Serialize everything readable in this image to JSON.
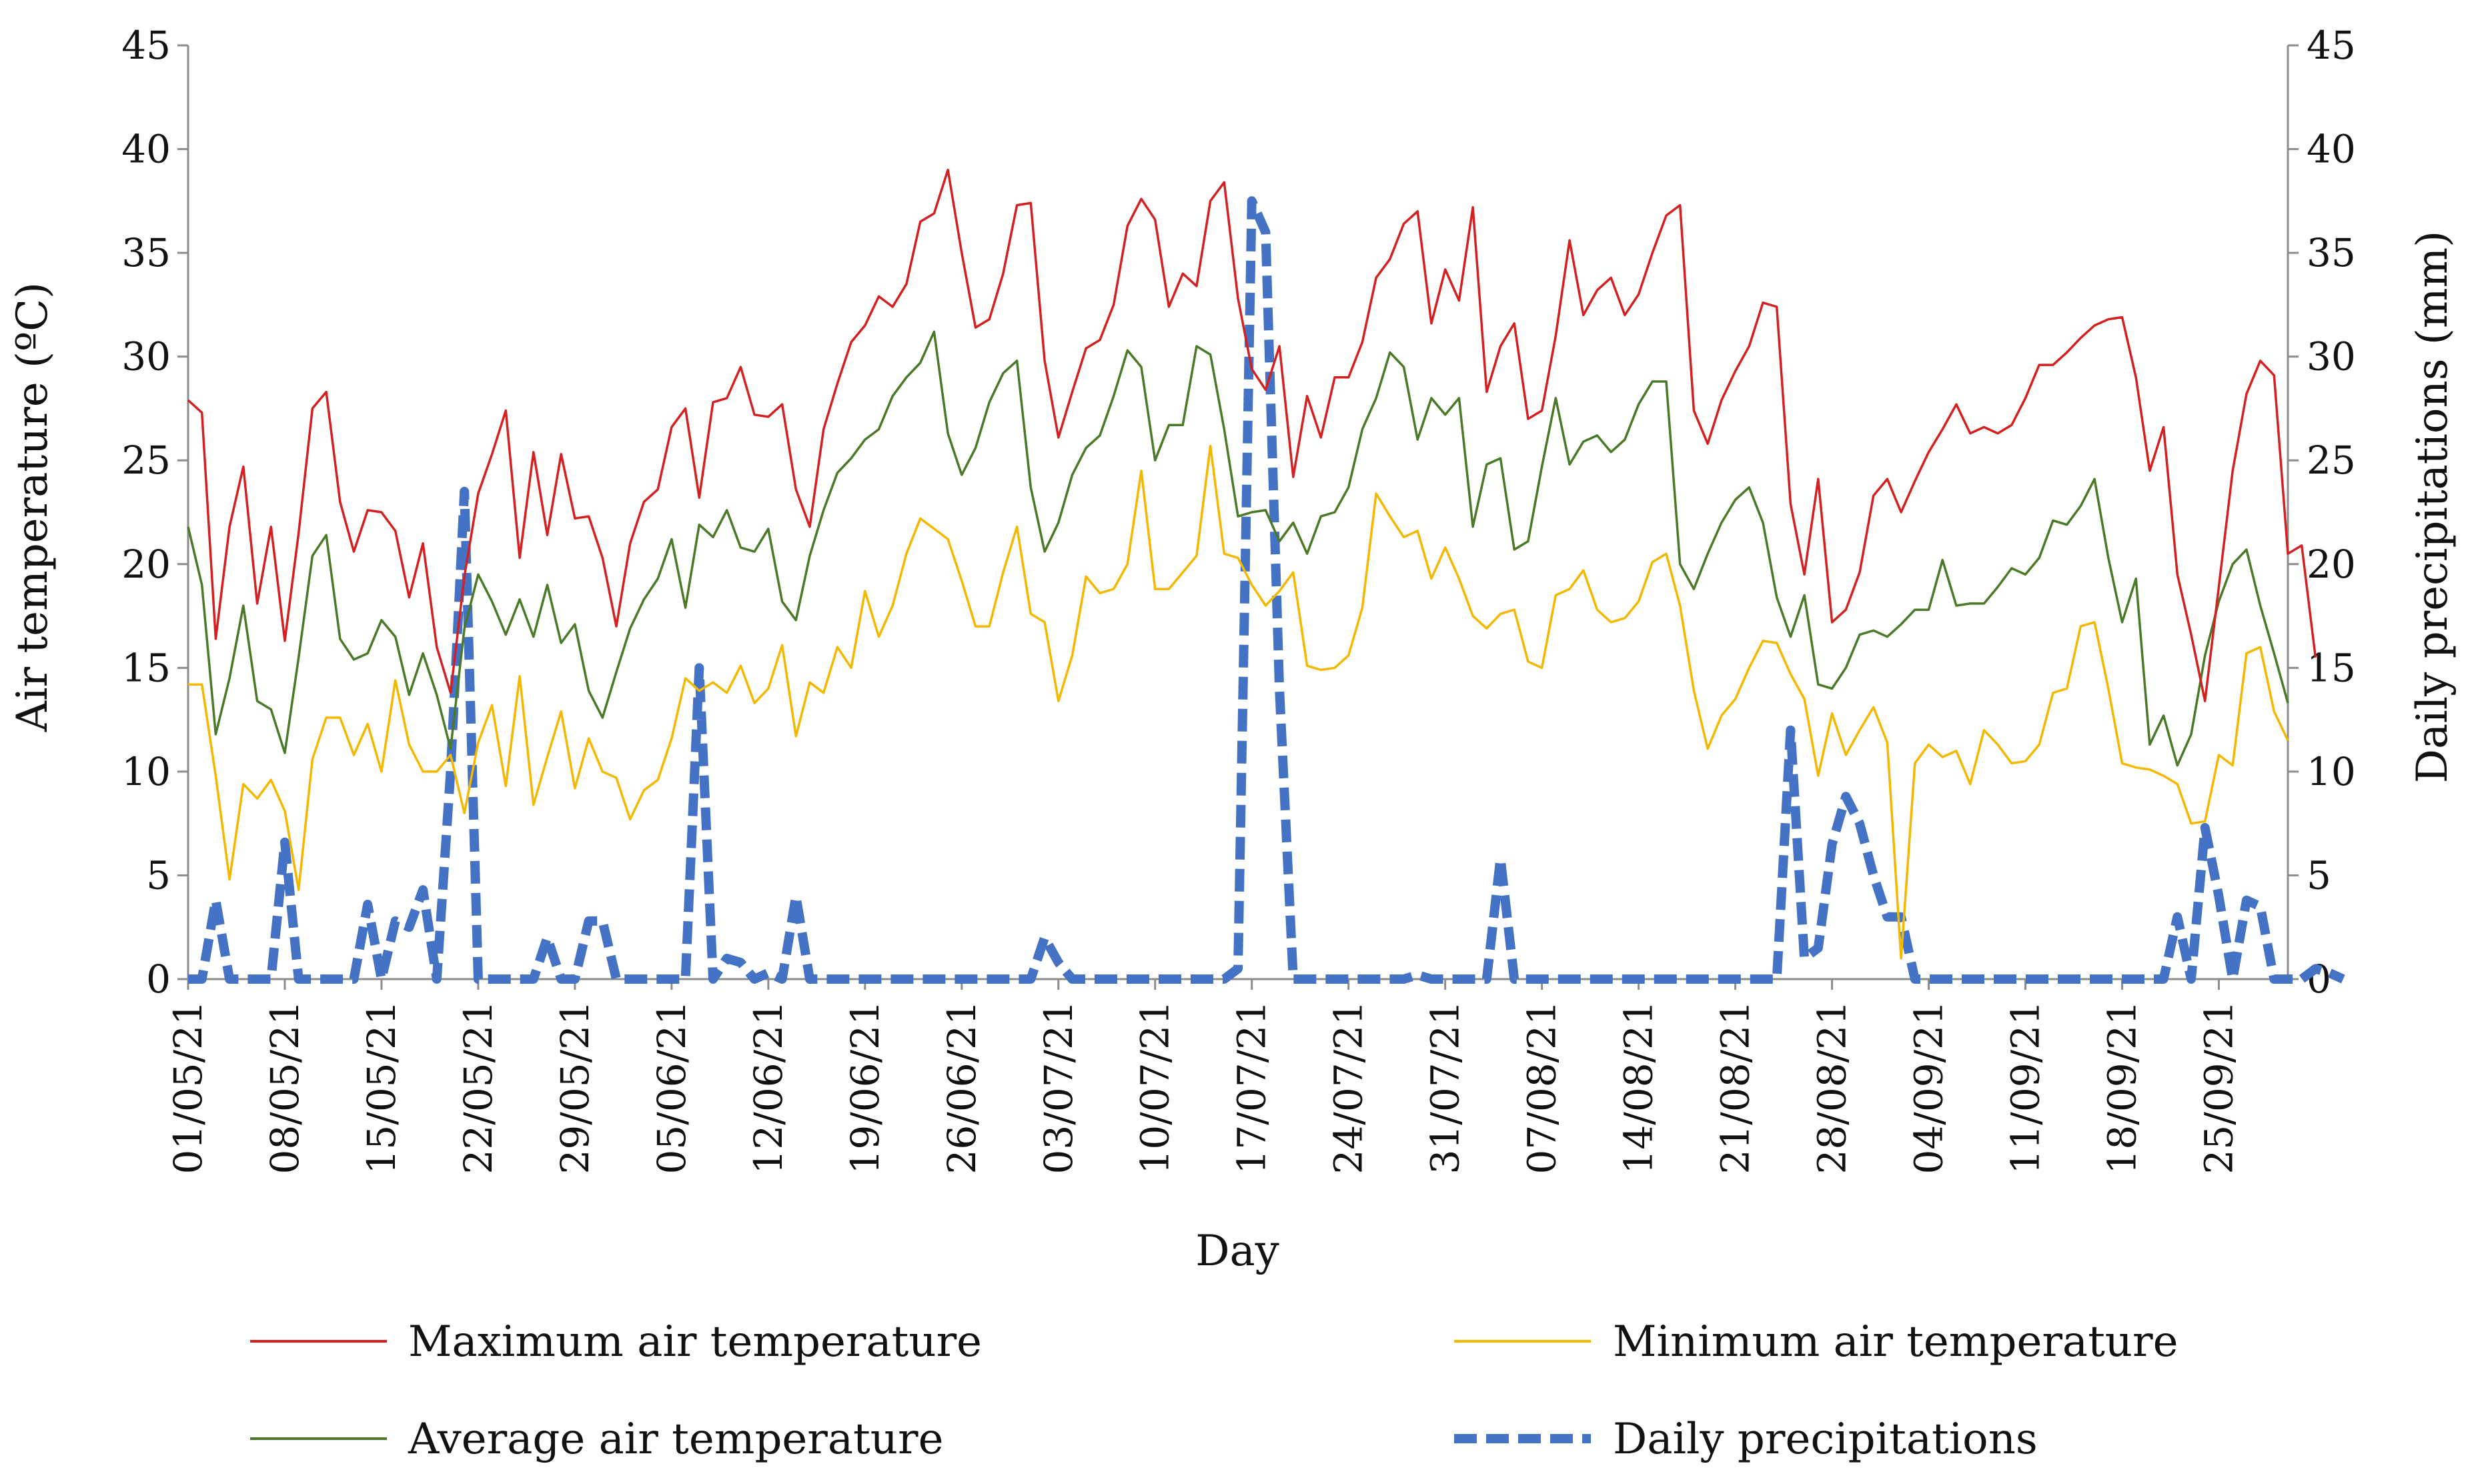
{
  "chart_data": {
    "type": "line",
    "title": "",
    "xlabel": "Day",
    "ylabel": "Air temperature (ºC)",
    "y2label": "Daily precipitations (mm)",
    "ylim": [
      0,
      45
    ],
    "y2lim": [
      0,
      45
    ],
    "yticks": [
      "0",
      "5",
      "10",
      "15",
      "20",
      "25",
      "30",
      "35",
      "40",
      "45"
    ],
    "y2ticks": [
      "0",
      "5",
      "10",
      "15",
      "20",
      "25",
      "30",
      "35",
      "40",
      "45"
    ],
    "grid": false,
    "legend_position": "bottom",
    "x_start": "01/05/21",
    "n_days": 153,
    "x_tick_labels": [
      "01/05/21",
      "08/05/21",
      "15/05/21",
      "22/05/21",
      "29/05/21",
      "05/06/21",
      "12/06/21",
      "19/06/21",
      "26/06/21",
      "03/07/21",
      "10/07/21",
      "17/07/21",
      "24/07/21",
      "31/07/21",
      "07/08/21",
      "14/08/21",
      "21/08/21",
      "28/08/21",
      "04/09/21",
      "11/09/21",
      "18/09/21",
      "25/09/21"
    ],
    "series": [
      {
        "name": "Maximum air temperature",
        "color": "#d42020",
        "style": "solid",
        "axis": "left",
        "values": [
          27.9,
          27.3,
          16.4,
          21.8,
          24.7,
          18.1,
          21.8,
          16.3,
          21.5,
          27.5,
          28.3,
          23.0,
          20.6,
          22.6,
          22.5,
          21.6,
          18.4,
          21.0,
          16.0,
          13.8,
          19.4,
          23.4,
          25.3,
          27.4,
          20.3,
          25.4,
          21.4,
          25.3,
          22.2,
          22.3,
          20.3,
          17.0,
          21.0,
          23.0,
          23.6,
          26.6,
          27.5,
          23.2,
          27.8,
          28.0,
          29.5,
          27.2,
          27.1,
          27.7,
          23.6,
          21.8,
          26.5,
          28.7,
          30.7,
          31.5,
          32.9,
          32.4,
          33.5,
          36.5,
          36.9,
          39.0,
          35.0,
          31.4,
          31.8,
          34.0,
          37.3,
          37.4,
          29.8,
          26.1,
          28.3,
          30.4,
          30.8,
          32.5,
          36.3,
          37.6,
          36.6,
          32.4,
          34.0,
          33.4,
          37.5,
          38.4,
          32.8,
          29.4,
          28.4,
          30.5,
          24.2,
          28.1,
          26.1,
          29.0,
          29.0,
          30.7,
          33.8,
          34.7,
          36.4,
          37.0,
          31.6,
          34.2,
          32.7,
          37.2,
          28.3,
          30.5,
          31.6,
          27.0,
          27.4,
          31.0,
          35.6,
          32.0,
          33.2,
          33.8,
          32.0,
          33.0,
          35.0,
          36.8,
          37.3,
          27.4,
          25.8,
          27.9,
          29.3,
          30.5,
          32.6,
          32.4,
          22.9,
          19.5,
          24.1,
          17.2,
          17.8,
          19.6,
          23.3,
          24.1,
          22.5,
          24.0,
          25.4,
          26.5,
          27.7,
          26.3,
          26.6,
          26.3,
          26.7,
          28.0,
          29.6,
          29.6,
          30.2,
          30.9,
          31.5,
          31.8,
          31.9,
          29.0,
          24.5,
          26.6,
          19.5,
          16.6,
          13.4,
          18.9,
          24.5,
          28.2,
          29.8,
          29.1,
          20.5,
          20.9,
          15.5
        ]
      },
      {
        "name": "Minimum air temperature",
        "color": "#f5b800",
        "style": "solid",
        "axis": "left",
        "values": [
          14.2,
          14.2,
          9.8,
          4.8,
          9.4,
          8.7,
          9.6,
          8.1,
          4.3,
          10.6,
          12.6,
          12.6,
          10.8,
          12.3,
          10.0,
          14.4,
          11.3,
          10.0,
          10.0,
          10.8,
          8.0,
          11.4,
          13.2,
          9.3,
          14.6,
          8.4,
          10.7,
          12.9,
          9.2,
          11.6,
          10.0,
          9.7,
          7.7,
          9.1,
          9.6,
          11.6,
          14.5,
          13.9,
          14.3,
          13.8,
          15.1,
          13.3,
          14.0,
          16.1,
          11.7,
          14.3,
          13.8,
          16.0,
          15.0,
          18.7,
          16.5,
          18.0,
          20.5,
          22.2,
          21.7,
          21.2,
          19.2,
          17.0,
          17.0,
          19.6,
          21.8,
          17.6,
          17.2,
          13.4,
          15.6,
          19.4,
          18.6,
          18.8,
          20.0,
          24.5,
          18.8,
          18.8,
          19.6,
          20.4,
          25.7,
          20.5,
          20.3,
          19.0,
          18.0,
          18.7,
          19.6,
          15.1,
          14.9,
          15.0,
          15.6,
          17.9,
          23.4,
          22.3,
          21.3,
          21.6,
          19.3,
          20.8,
          19.3,
          17.5,
          16.9,
          17.6,
          17.8,
          15.3,
          15.0,
          18.5,
          18.8,
          19.7,
          17.8,
          17.2,
          17.4,
          18.2,
          20.1,
          20.5,
          18.0,
          13.9,
          11.1,
          12.7,
          13.5,
          15.0,
          16.3,
          16.2,
          14.7,
          13.5,
          9.8,
          12.8,
          10.8,
          12.0,
          13.1,
          11.4,
          1.0,
          10.4,
          11.3,
          10.7,
          11.0,
          9.4,
          12.0,
          11.3,
          10.4,
          10.5,
          11.3,
          13.8,
          14.0,
          17.0,
          17.2,
          14.0,
          10.4,
          10.2,
          10.1,
          9.8,
          9.4,
          7.5,
          7.6,
          10.8,
          10.3,
          15.7,
          16.0,
          12.9,
          11.5
        ]
      },
      {
        "name": "Average air temperature",
        "color": "#4a7a28",
        "style": "solid",
        "axis": "left",
        "values": [
          21.8,
          19.0,
          11.8,
          14.5,
          18.0,
          13.4,
          13.0,
          10.9,
          15.5,
          20.4,
          21.4,
          16.4,
          15.4,
          15.7,
          17.3,
          16.5,
          13.7,
          15.7,
          13.7,
          11.1,
          16.9,
          19.5,
          18.2,
          16.6,
          18.3,
          16.5,
          19.0,
          16.2,
          17.1,
          13.9,
          12.6,
          14.8,
          16.9,
          18.3,
          19.3,
          21.2,
          17.9,
          21.9,
          21.3,
          22.6,
          20.8,
          20.6,
          21.7,
          18.2,
          17.3,
          20.4,
          22.6,
          24.4,
          25.1,
          26.0,
          26.5,
          28.1,
          29.0,
          29.7,
          31.2,
          26.3,
          24.3,
          25.6,
          27.8,
          29.2,
          29.8,
          23.7,
          20.6,
          22.0,
          24.3,
          25.6,
          26.2,
          28.1,
          30.3,
          29.5,
          25.0,
          26.7,
          26.7,
          30.5,
          30.1,
          26.5,
          22.3,
          22.5,
          22.6,
          21.1,
          22.0,
          20.5,
          22.3,
          22.5,
          23.7,
          26.5,
          28.0,
          30.2,
          29.5,
          26.0,
          28.0,
          27.2,
          28.0,
          21.8,
          24.8,
          25.1,
          20.7,
          21.1,
          24.7,
          28.0,
          24.8,
          25.9,
          26.2,
          25.4,
          26.0,
          27.7,
          28.8,
          28.8,
          20.0,
          18.8,
          20.5,
          22.0,
          23.1,
          23.7,
          22.0,
          18.4,
          16.5,
          18.5,
          14.2,
          14.0,
          15.0,
          16.6,
          16.8,
          16.5,
          17.1,
          17.8,
          17.8,
          20.2,
          18.0,
          18.1,
          18.1,
          18.9,
          19.8,
          19.5,
          20.3,
          22.1,
          21.9,
          22.8,
          24.1,
          20.3,
          17.2,
          19.3,
          11.3,
          12.7,
          10.3,
          11.8,
          15.6,
          18.2,
          20.0,
          20.7,
          18.0,
          15.7,
          13.3
        ]
      },
      {
        "name": "Daily precipitations",
        "color": "#4472c4",
        "style": "dashed",
        "axis": "right",
        "values": [
          0,
          0,
          3.8,
          0,
          0,
          0,
          0,
          6.6,
          0,
          0,
          0,
          0,
          0,
          3.6,
          0,
          2.8,
          2.5,
          4.3,
          0,
          10.0,
          23.5,
          0,
          0,
          0,
          0,
          0,
          2.0,
          0,
          0,
          2.8,
          2.8,
          0,
          0,
          0,
          0,
          0,
          0,
          15.0,
          0,
          1.0,
          0.8,
          0,
          0.3,
          0,
          4.0,
          0,
          0,
          0,
          0,
          0,
          0,
          0,
          0,
          0,
          0,
          0,
          0,
          0,
          0,
          0,
          0,
          0,
          2.0,
          0.8,
          0,
          0,
          0,
          0,
          0,
          0,
          0,
          0,
          0,
          0,
          0,
          0,
          0.5,
          37.5,
          36.0,
          14.0,
          0,
          0,
          0,
          0,
          0,
          0,
          0,
          0,
          0,
          0.2,
          0,
          0,
          0,
          0,
          0,
          5.8,
          0,
          0,
          0,
          0,
          0,
          0,
          0,
          0,
          0,
          0,
          0,
          0,
          0,
          0,
          0,
          0,
          0,
          0,
          0,
          0,
          12.0,
          1.0,
          1.5,
          6.5,
          8.8,
          7.5,
          5.0,
          3.0,
          3.0,
          0,
          0,
          0,
          0,
          0,
          0,
          0,
          0,
          0,
          0,
          0,
          0,
          0,
          0,
          0,
          0,
          0,
          0,
          0,
          3.0,
          0,
          7.3,
          4.0,
          0,
          3.8,
          3.5,
          0,
          0,
          0,
          0.5,
          0.3,
          0
        ]
      }
    ]
  }
}
